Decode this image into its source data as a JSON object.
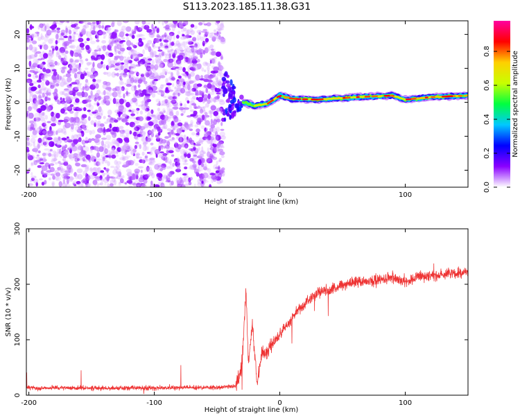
{
  "title": "S113.2023.185.11.38.G31",
  "chart_data": [
    {
      "type": "heatmap",
      "name": "spectrogram",
      "xlabel": "Height of straight line (km)",
      "ylabel": "Frequency (Hz)",
      "xlim": [
        -202,
        150
      ],
      "ylim": [
        -25,
        24
      ],
      "xticks": [
        -200,
        -100,
        0,
        100
      ],
      "yticks": [
        -20,
        -10,
        0,
        10,
        20
      ],
      "colorbar": {
        "label": "Normalized spectral amplitude",
        "range": [
          0,
          0.98
        ],
        "ticks": [
          "0.0",
          "0.2",
          "0.4",
          "0.6",
          "0.8"
        ],
        "colors": [
          "#ffffff",
          "#8a00ff",
          "#0000ff",
          "#00c8ff",
          "#00ff40",
          "#c8ff00",
          "#ffd000",
          "#ff0000",
          "#ff00a0"
        ]
      },
      "noise_region": {
        "x_range": [
          -202,
          -45
        ],
        "amplitude_range": [
          0.02,
          0.12
        ]
      },
      "transition_region": {
        "x_range": [
          -45,
          -30
        ],
        "freq_range": [
          -6,
          8
        ]
      },
      "carrier_line": {
        "x_range": [
          -30,
          150
        ],
        "freq_path": [
          [
            -30,
            0
          ],
          [
            -20,
            -1
          ],
          [
            -10,
            -0.5
          ],
          [
            0,
            2
          ],
          [
            10,
            1
          ],
          [
            30,
            0.8
          ],
          [
            60,
            1.5
          ],
          [
            90,
            2
          ],
          [
            100,
            0.8
          ],
          [
            120,
            1.5
          ],
          [
            150,
            2
          ]
        ],
        "peak_amplitude": 0.9
      }
    },
    {
      "type": "line",
      "name": "snr",
      "xlabel": "Height of straight line (km)",
      "ylabel": "SNR (10 * v/v)",
      "xlim": [
        -202,
        150
      ],
      "ylim": [
        0,
        300
      ],
      "xticks": [
        -200,
        -100,
        0,
        100
      ],
      "yticks": [
        0,
        100,
        200,
        300
      ],
      "color": "#ee3333",
      "x": [
        -202,
        -150,
        -100,
        -50,
        -35,
        -30,
        -27,
        -25,
        -22,
        -18,
        -15,
        -10,
        -5,
        0,
        5,
        10,
        15,
        20,
        25,
        30,
        40,
        50,
        60,
        70,
        80,
        90,
        100,
        110,
        120,
        130,
        140,
        150
      ],
      "y": [
        13,
        13,
        13,
        14,
        16,
        55,
        190,
        60,
        130,
        20,
        70,
        80,
        95,
        110,
        125,
        140,
        155,
        165,
        175,
        185,
        190,
        198,
        205,
        205,
        208,
        212,
        205,
        212,
        215,
        218,
        220,
        222
      ]
    }
  ]
}
